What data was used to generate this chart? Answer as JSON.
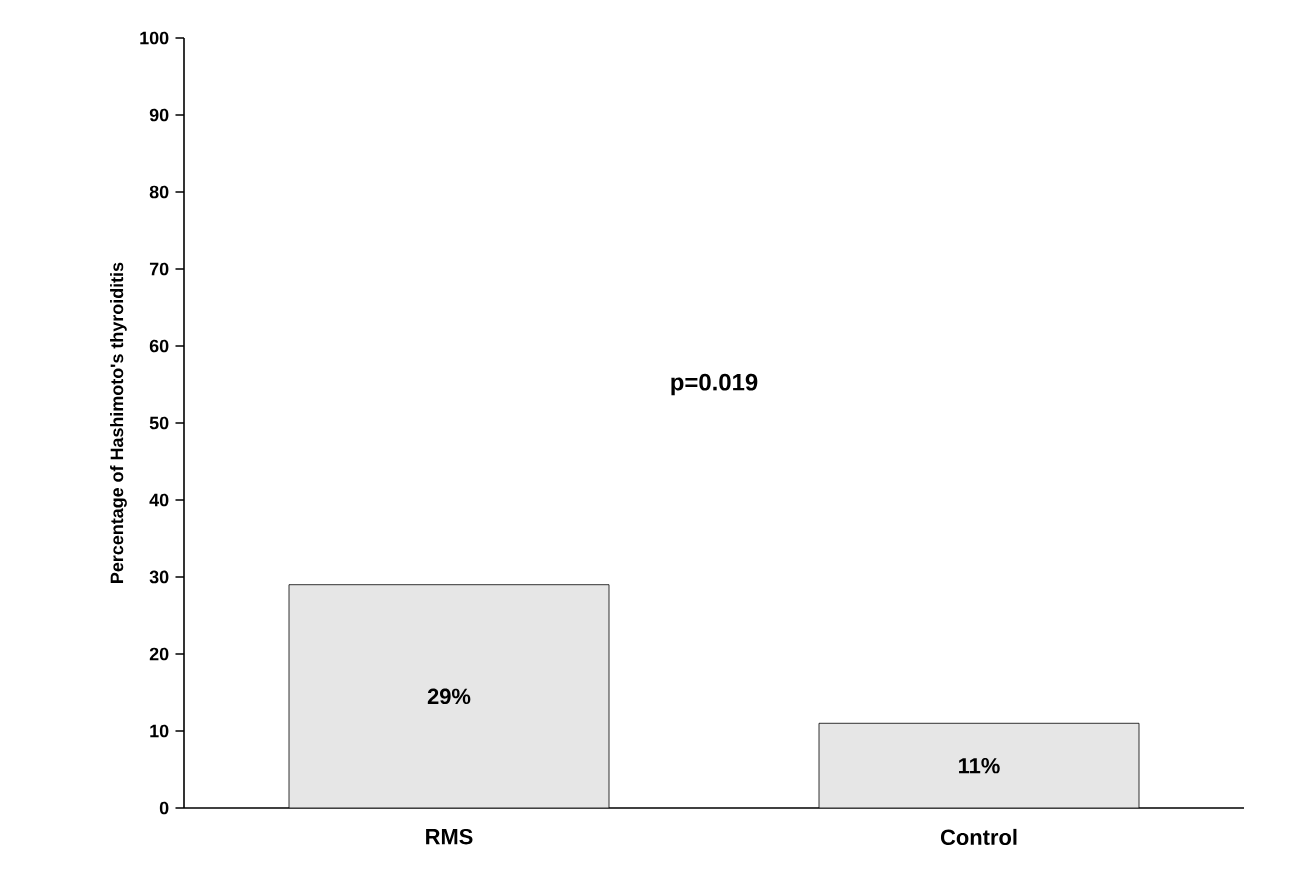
{
  "chart_data": {
    "type": "bar",
    "ylabel": "Percentage of Hashimoto's thyroiditis",
    "categories": [
      "RMS",
      "Control"
    ],
    "values": [
      29,
      11
    ],
    "value_labels": [
      "29%",
      "11%"
    ],
    "color": "#e6e6e6",
    "ylim": [
      0,
      100
    ],
    "yticks": [
      0,
      10,
      20,
      30,
      40,
      50,
      60,
      70,
      80,
      90,
      100
    ],
    "annotations": [
      "p=0.019"
    ],
    "grid": false
  }
}
